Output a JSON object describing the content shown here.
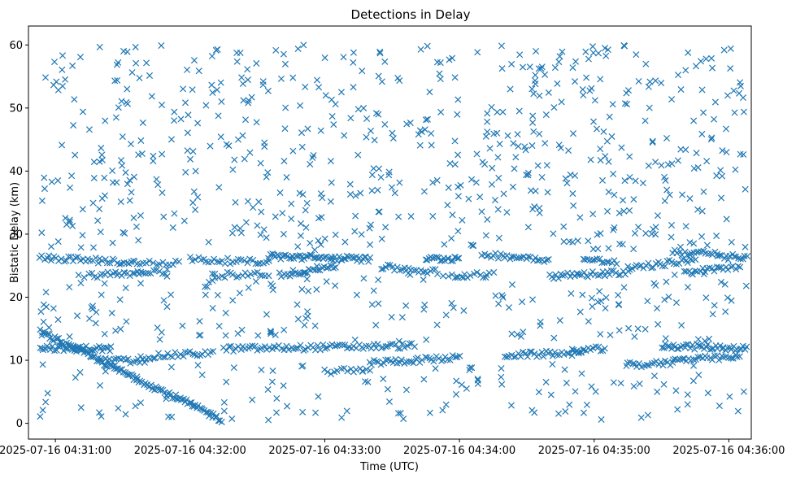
{
  "chart_data": {
    "type": "scatter",
    "title": "Detections in Delay",
    "xlabel": "Time (UTC)",
    "ylabel": "Bistatic Delay (km)",
    "x_ticks": [
      "2025-07-16 04:31:00",
      "2025-07-16 04:32:00",
      "2025-07-16 04:33:00",
      "2025-07-16 04:34:00",
      "2025-07-16 04:35:00",
      "2025-07-16 04:36:00"
    ],
    "y_ticks": [
      0,
      10,
      20,
      30,
      40,
      50,
      60
    ],
    "xlim": [
      "2025-07-16 04:30:48",
      "2025-07-16 04:36:10"
    ],
    "ylim": [
      -2.5,
      63
    ],
    "marker": "x",
    "color": "#1f77b4",
    "grid": false,
    "series": [
      {
        "tracks": [
          {
            "t_start": "2025-07-16 04:30:53",
            "t_end": "2025-07-16 04:32:14",
            "y_start": 14.5,
            "y_end": 0.6,
            "n": 120
          },
          {
            "t_start": "2025-07-16 04:30:53",
            "t_end": "2025-07-16 04:31:25",
            "y_start": 12.0,
            "y_end": 11.8,
            "n": 40
          },
          {
            "t_start": "2025-07-16 04:31:20",
            "t_end": "2025-07-16 04:31:40",
            "y_start": 10.0,
            "y_end": 9.8,
            "n": 20
          },
          {
            "t_start": "2025-07-16 04:31:38",
            "t_end": "2025-07-16 04:32:10",
            "y_start": 10.5,
            "y_end": 11.2,
            "n": 30
          },
          {
            "t_start": "2025-07-16 04:32:15",
            "t_end": "2025-07-16 04:33:40",
            "y_start": 11.8,
            "y_end": 12.3,
            "n": 80
          },
          {
            "t_start": "2025-07-16 04:33:00",
            "t_end": "2025-07-16 04:33:20",
            "y_start": 8.2,
            "y_end": 8.4,
            "n": 15
          },
          {
            "t_start": "2025-07-16 04:33:20",
            "t_end": "2025-07-16 04:34:00",
            "y_start": 9.6,
            "y_end": 10.4,
            "n": 40
          },
          {
            "t_start": "2025-07-16 04:34:20",
            "t_end": "2025-07-16 04:34:55",
            "y_start": 10.8,
            "y_end": 11.2,
            "n": 35
          },
          {
            "t_start": "2025-07-16 04:34:50",
            "t_end": "2025-07-16 04:35:05",
            "y_start": 11.5,
            "y_end": 11.8,
            "n": 15
          },
          {
            "t_start": "2025-07-16 04:35:15",
            "t_end": "2025-07-16 04:35:35",
            "y_start": 9.2,
            "y_end": 9.6,
            "n": 20
          },
          {
            "t_start": "2025-07-16 04:35:30",
            "t_end": "2025-07-16 04:36:08",
            "y_start": 12.3,
            "y_end": 11.9,
            "n": 45
          },
          {
            "t_start": "2025-07-16 04:35:35",
            "t_end": "2025-07-16 04:36:05",
            "y_start": 10.0,
            "y_end": 10.5,
            "n": 30
          },
          {
            "t_start": "2025-07-16 04:30:53",
            "t_end": "2025-07-16 04:31:35",
            "y_start": 26.3,
            "y_end": 25.5,
            "n": 40
          },
          {
            "t_start": "2025-07-16 04:31:15",
            "t_end": "2025-07-16 04:31:50",
            "y_start": 23.5,
            "y_end": 24.0,
            "n": 30
          },
          {
            "t_start": "2025-07-16 04:31:35",
            "t_end": "2025-07-16 04:31:55",
            "y_start": 25.5,
            "y_end": 25.5,
            "n": 15
          },
          {
            "t_start": "2025-07-16 04:32:00",
            "t_end": "2025-07-16 04:32:35",
            "y_start": 26.0,
            "y_end": 25.5,
            "n": 30
          },
          {
            "t_start": "2025-07-16 04:32:10",
            "t_end": "2025-07-16 04:32:35",
            "y_start": 23.5,
            "y_end": 23.7,
            "n": 20
          },
          {
            "t_start": "2025-07-16 04:32:35",
            "t_end": "2025-07-16 04:33:20",
            "y_start": 26.5,
            "y_end": 26.0,
            "n": 60
          },
          {
            "t_start": "2025-07-16 04:32:40",
            "t_end": "2025-07-16 04:33:05",
            "y_start": 23.5,
            "y_end": 25.0,
            "n": 30
          },
          {
            "t_start": "2025-07-16 04:33:25",
            "t_end": "2025-07-16 04:33:50",
            "y_start": 24.8,
            "y_end": 24.0,
            "n": 25
          },
          {
            "t_start": "2025-07-16 04:33:45",
            "t_end": "2025-07-16 04:34:00",
            "y_start": 26.0,
            "y_end": 26.2,
            "n": 20
          },
          {
            "t_start": "2025-07-16 04:33:55",
            "t_end": "2025-07-16 04:34:15",
            "y_start": 23.5,
            "y_end": 23.5,
            "n": 15
          },
          {
            "t_start": "2025-07-16 04:34:10",
            "t_end": "2025-07-16 04:34:40",
            "y_start": 26.8,
            "y_end": 26.0,
            "n": 30
          },
          {
            "t_start": "2025-07-16 04:34:40",
            "t_end": "2025-07-16 04:35:15",
            "y_start": 23.3,
            "y_end": 24.0,
            "n": 35
          },
          {
            "t_start": "2025-07-16 04:34:55",
            "t_end": "2025-07-16 04:35:10",
            "y_start": 26.0,
            "y_end": 25.5,
            "n": 15
          },
          {
            "t_start": "2025-07-16 04:35:15",
            "t_end": "2025-07-16 04:35:45",
            "y_start": 24.5,
            "y_end": 26.0,
            "n": 30
          },
          {
            "t_start": "2025-07-16 04:35:35",
            "t_end": "2025-07-16 04:35:55",
            "y_start": 27.2,
            "y_end": 26.8,
            "n": 20
          },
          {
            "t_start": "2025-07-16 04:35:40",
            "t_end": "2025-07-16 04:36:05",
            "y_start": 23.8,
            "y_end": 25.0,
            "n": 25
          },
          {
            "t_start": "2025-07-16 04:35:55",
            "t_end": "2025-07-16 04:36:08",
            "y_start": 26.2,
            "y_end": 26.5,
            "n": 15
          }
        ],
        "scatter": {
          "t_start": "2025-07-16 04:30:53",
          "t_end": "2025-07-16 04:36:08",
          "y_min": 0.5,
          "y_max": 60,
          "n": 900
        }
      }
    ]
  }
}
